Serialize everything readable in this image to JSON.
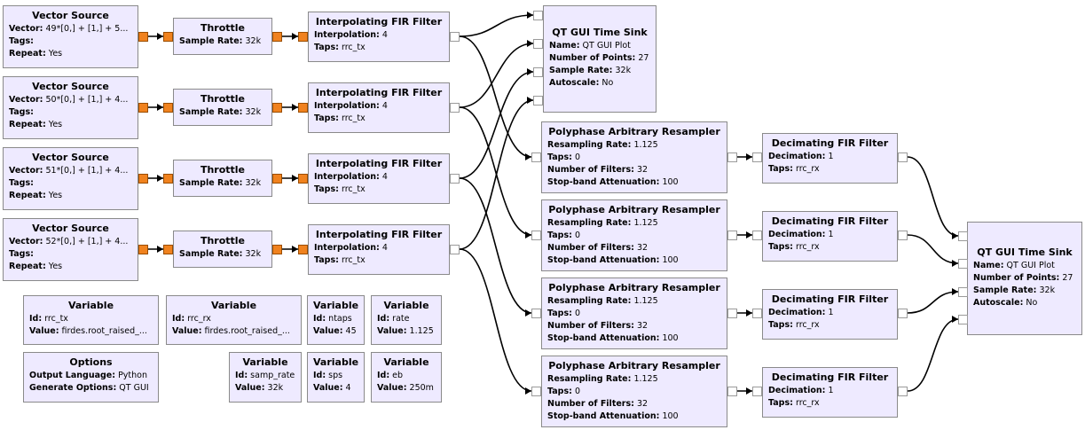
{
  "blocks": {
    "vs1": {
      "title": "Vector Source",
      "vector": "49*[0,] + [1,] + 5...",
      "tags": "",
      "repeat": "Yes"
    },
    "vs2": {
      "title": "Vector Source",
      "vector": "50*[0,] + [1,] + 4...",
      "tags": "",
      "repeat": "Yes"
    },
    "vs3": {
      "title": "Vector Source",
      "vector": "51*[0,] + [1,] + 4...",
      "tags": "",
      "repeat": "Yes"
    },
    "vs4": {
      "title": "Vector Source",
      "vector": "52*[0,] + [1,] + 4...",
      "tags": "",
      "repeat": "Yes"
    },
    "th": {
      "title": "Throttle",
      "sample_rate": "32k"
    },
    "fir": {
      "title": "Interpolating FIR Filter",
      "interpolation": "4",
      "taps": "rrc_tx"
    },
    "ts1": {
      "title": "QT GUI Time Sink",
      "name": "QT GUI Plot",
      "points": "27",
      "sample_rate": "32k",
      "autoscale": "No"
    },
    "ts2": {
      "title": "QT GUI Time Sink",
      "name": "QT GUI Plot",
      "points": "27",
      "sample_rate": "32k",
      "autoscale": "No"
    },
    "par": {
      "title": "Polyphase Arbitrary Resampler",
      "rate": "1.125",
      "taps": "0",
      "filters": "32",
      "atten": "100"
    },
    "dec": {
      "title": "Decimating FIR Filter",
      "decimation": "1",
      "taps": "rrc_rx"
    },
    "var_rrc_tx": {
      "title": "Variable",
      "id": "rrc_tx",
      "value": "firdes.root_raised_..."
    },
    "var_rrc_rx": {
      "title": "Variable",
      "id": "rrc_rx",
      "value": "firdes.root_raised_..."
    },
    "var_ntaps": {
      "title": "Variable",
      "id": "ntaps",
      "value": "45"
    },
    "var_rate": {
      "title": "Variable",
      "id": "rate",
      "value": "1.125"
    },
    "options": {
      "title": "Options",
      "lang": "Python",
      "gen": "QT GUI"
    },
    "var_samp_rate": {
      "title": "Variable",
      "id": "samp_rate",
      "value": "32k"
    },
    "var_sps": {
      "title": "Variable",
      "id": "sps",
      "value": "4"
    },
    "var_eb": {
      "title": "Variable",
      "id": "eb",
      "value": "250m"
    }
  },
  "labels": {
    "vector": "Vector:",
    "tags": "Tags:",
    "repeat": "Repeat:",
    "sample_rate": "Sample Rate:",
    "interpolation": "Interpolation:",
    "taps": "Taps:",
    "name": "Name:",
    "points": "Number of Points:",
    "autoscale": "Autoscale:",
    "resampling_rate": "Resampling Rate:",
    "num_filters": "Number of Filters:",
    "atten": "Stop-band Attenuation:",
    "decimation": "Decimation:",
    "id": "Id:",
    "value": "Value:",
    "output_language": "Output Language:",
    "generate_options": "Generate Options:"
  },
  "colors": {
    "block_fill": "#eeeaff",
    "block_border": "#8a8a8a",
    "port_active": "#f0821e",
    "wire": "#000000"
  }
}
